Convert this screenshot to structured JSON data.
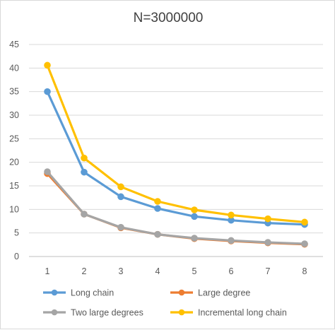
{
  "chart_data": {
    "type": "line",
    "title": "N=3000000",
    "xlabel": "",
    "ylabel": "",
    "x": [
      1,
      2,
      3,
      4,
      5,
      6,
      7,
      8
    ],
    "ylim": [
      0,
      45
    ],
    "yticks": [
      0,
      5,
      10,
      15,
      20,
      25,
      30,
      35,
      40,
      45
    ],
    "grid": "horizontal",
    "legend_position": "bottom",
    "series": [
      {
        "name": "Long chain",
        "color": "#5B9BD5",
        "values": [
          35.0,
          17.9,
          12.7,
          10.2,
          8.5,
          7.7,
          7.1,
          6.8
        ]
      },
      {
        "name": "Large degree",
        "color": "#ED7D31",
        "values": [
          17.6,
          9.0,
          6.1,
          4.7,
          3.8,
          3.3,
          2.9,
          2.6
        ]
      },
      {
        "name": "Two large degrees",
        "color": "#A5A5A5",
        "values": [
          18.0,
          9.0,
          6.2,
          4.7,
          3.9,
          3.4,
          3.0,
          2.7
        ]
      },
      {
        "name": "Incremental long chain",
        "color": "#FFC000",
        "values": [
          40.6,
          20.9,
          14.8,
          11.7,
          9.9,
          8.8,
          8.0,
          7.3
        ]
      }
    ]
  }
}
